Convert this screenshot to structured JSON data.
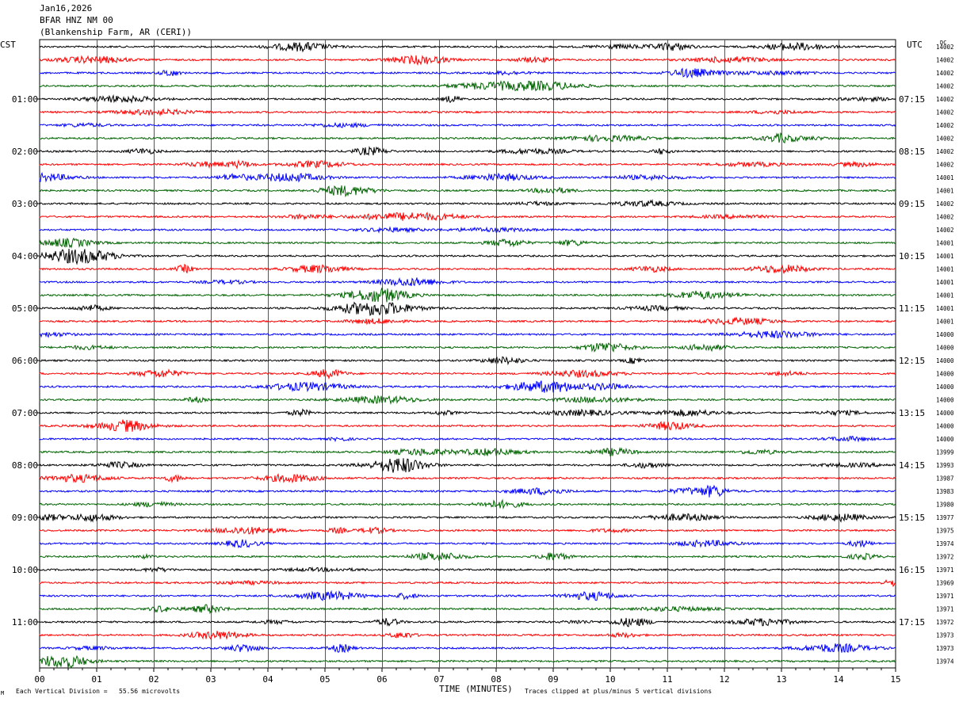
{
  "header": {
    "date": "Jan16,2026",
    "station": "BFAR HNZ NM 00",
    "site": "(Blankenship Farm, AR (CERI))"
  },
  "left_tz": "CST",
  "right_tz": "UTC",
  "dc_label": "DC",
  "footer": {
    "scale": "Each Vertical Division =   55.56 microvolts",
    "xlabel": "TIME (MINUTES)",
    "clip": "Traces clipped at plus/minus 5 vertical divisions",
    "corner": "M"
  },
  "chart_data": {
    "type": "line",
    "title": "BFAR HNZ NM 00",
    "xlabel": "TIME (MINUTES)",
    "xlim": [
      0,
      15
    ],
    "x_ticks": [
      "00",
      "01",
      "02",
      "03",
      "04",
      "05",
      "06",
      "07",
      "08",
      "09",
      "10",
      "11",
      "12",
      "13",
      "14",
      "15"
    ],
    "trace_colors": [
      "#000000",
      "#ff0000",
      "#0000ff",
      "#006400"
    ],
    "left_hour_labels": [
      "01:00",
      "02:00",
      "03:00",
      "04:00",
      "05:00",
      "06:00",
      "07:00",
      "08:00",
      "09:00",
      "10:00",
      "11:00"
    ],
    "right_hour_labels": [
      "07:15",
      "08:15",
      "09:15",
      "10:15",
      "11:15",
      "12:15",
      "13:15",
      "14:15",
      "15:15",
      "16:15",
      "17:15"
    ],
    "dc_offsets": [
      "14002",
      "14002",
      "14002",
      "14002",
      "14002",
      "14002",
      "14002",
      "14002",
      "14002",
      "14002",
      "14001",
      "14001",
      "14002",
      "14002",
      "14002",
      "14001",
      "14001",
      "14001",
      "14001",
      "14001",
      "14001",
      "14001",
      "14000",
      "14000",
      "14000",
      "14000",
      "14000",
      "14000",
      "14000",
      "14000",
      "14000",
      "13999",
      "13993",
      "13987",
      "13983",
      "13980",
      "13977",
      "13975",
      "13974",
      "13972",
      "13971",
      "13969",
      "13971",
      "13971",
      "13972",
      "13973",
      "13973",
      "13974"
    ]
  }
}
